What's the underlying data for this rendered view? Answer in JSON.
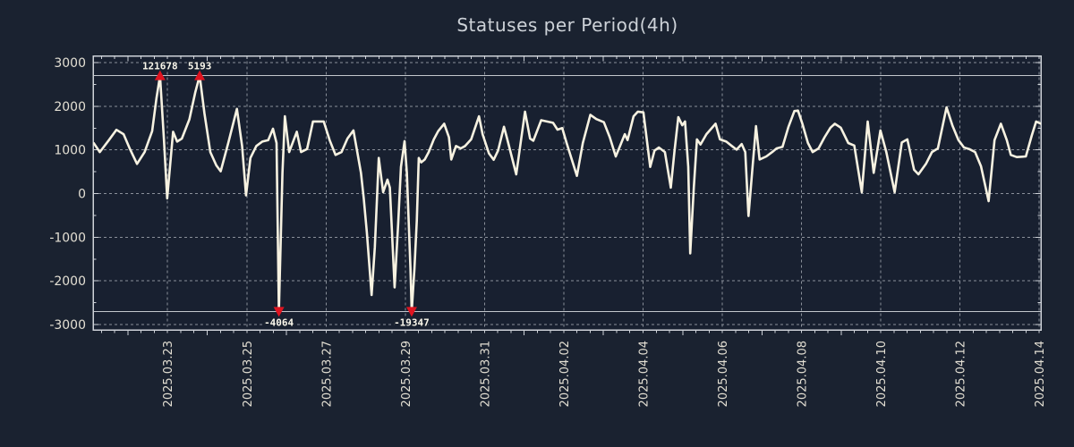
{
  "title": "Statuses per Period(4h)",
  "chart_data": {
    "type": "line",
    "title": "Statuses per Period(4h)",
    "period": "4h",
    "legend_position": "none",
    "grid": true,
    "x_axis": {
      "tick_labels": [
        "2025.03.23",
        "2025.03.25",
        "2025.03.27",
        "2025.03.29",
        "2025.03.31",
        "2025.04.02",
        "2025.04.04",
        "2025.04.06",
        "2025.04.08",
        "2025.04.10",
        "2025.04.12",
        "2025.04.14"
      ],
      "tick_interval_days": 2,
      "first_tick_day_offset": 1.88,
      "total_days": 23.92,
      "minor_tick_hours": 8
    },
    "y_axis": {
      "min": -3000,
      "max": 3000,
      "tick_step": 1000,
      "tick_labels": [
        "3000",
        "2000",
        "1000",
        "0",
        "-1000",
        "-2000",
        "-3000"
      ],
      "minor_tick_step": 500
    },
    "clip_value": 2700,
    "clip_lines": [
      2700,
      -2700
    ],
    "series": [
      {
        "name": "statuses",
        "points": [
          [
            0.02,
            1150
          ],
          [
            0.17,
            950
          ],
          [
            0.4,
            1225
          ],
          [
            0.59,
            1460
          ],
          [
            0.77,
            1360
          ],
          [
            0.93,
            1020
          ],
          [
            1.11,
            680
          ],
          [
            1.3,
            950
          ],
          [
            1.49,
            1430
          ],
          [
            1.6,
            2180
          ],
          [
            1.69,
            2700
          ],
          [
            1.79,
            1225
          ],
          [
            1.87,
            -110
          ],
          [
            1.96,
            815
          ],
          [
            2.02,
            1415
          ],
          [
            2.12,
            1190
          ],
          [
            2.24,
            1260
          ],
          [
            2.43,
            1700
          ],
          [
            2.58,
            2320
          ],
          [
            2.69,
            2700
          ],
          [
            2.81,
            1840
          ],
          [
            2.96,
            950
          ],
          [
            3.11,
            645
          ],
          [
            3.22,
            510
          ],
          [
            3.41,
            1155
          ],
          [
            3.63,
            1940
          ],
          [
            3.76,
            1090
          ],
          [
            3.86,
            -40
          ],
          [
            3.97,
            815
          ],
          [
            4.12,
            1090
          ],
          [
            4.27,
            1190
          ],
          [
            4.42,
            1225
          ],
          [
            4.54,
            1485
          ],
          [
            4.63,
            1155
          ],
          [
            4.69,
            -2700
          ],
          [
            4.78,
            475
          ],
          [
            4.84,
            1770
          ],
          [
            4.95,
            950
          ],
          [
            5.14,
            1415
          ],
          [
            5.25,
            950
          ],
          [
            5.4,
            1020
          ],
          [
            5.55,
            1650
          ],
          [
            5.82,
            1650
          ],
          [
            5.97,
            1225
          ],
          [
            6.12,
            885
          ],
          [
            6.27,
            950
          ],
          [
            6.42,
            1260
          ],
          [
            6.57,
            1445
          ],
          [
            6.66,
            985
          ],
          [
            6.76,
            475
          ],
          [
            6.83,
            -105
          ],
          [
            6.91,
            -890
          ],
          [
            7.03,
            -2325
          ],
          [
            7.11,
            -1230
          ],
          [
            7.21,
            815
          ],
          [
            7.32,
            30
          ],
          [
            7.43,
            320
          ],
          [
            7.49,
            135
          ],
          [
            7.61,
            -2150
          ],
          [
            7.7,
            -685
          ],
          [
            7.77,
            610
          ],
          [
            7.86,
            1200
          ],
          [
            7.92,
            475
          ],
          [
            8.01,
            -1710
          ],
          [
            8.04,
            -2700
          ],
          [
            8.11,
            -1710
          ],
          [
            8.17,
            -620
          ],
          [
            8.22,
            815
          ],
          [
            8.28,
            715
          ],
          [
            8.37,
            780
          ],
          [
            8.47,
            950
          ],
          [
            8.6,
            1240
          ],
          [
            8.71,
            1430
          ],
          [
            8.86,
            1600
          ],
          [
            8.98,
            1290
          ],
          [
            9.04,
            780
          ],
          [
            9.16,
            1090
          ],
          [
            9.28,
            1035
          ],
          [
            9.39,
            1090
          ],
          [
            9.54,
            1240
          ],
          [
            9.74,
            1770
          ],
          [
            9.83,
            1360
          ],
          [
            9.99,
            920
          ],
          [
            10.11,
            775
          ],
          [
            10.22,
            985
          ],
          [
            10.37,
            1530
          ],
          [
            10.44,
            1290
          ],
          [
            10.68,
            440
          ],
          [
            10.9,
            1875
          ],
          [
            11.03,
            1260
          ],
          [
            11.11,
            1210
          ],
          [
            11.31,
            1680
          ],
          [
            11.61,
            1620
          ],
          [
            11.72,
            1465
          ],
          [
            11.84,
            1500
          ],
          [
            11.95,
            1157
          ],
          [
            12.21,
            405
          ],
          [
            12.36,
            1157
          ],
          [
            12.55,
            1805
          ],
          [
            12.7,
            1705
          ],
          [
            12.89,
            1635
          ],
          [
            13.04,
            1290
          ],
          [
            13.19,
            850
          ],
          [
            13.3,
            1090
          ],
          [
            13.42,
            1360
          ],
          [
            13.49,
            1225
          ],
          [
            13.64,
            1770
          ],
          [
            13.75,
            1875
          ],
          [
            13.89,
            1860
          ],
          [
            14.06,
            610
          ],
          [
            14.17,
            985
          ],
          [
            14.28,
            1055
          ],
          [
            14.43,
            950
          ],
          [
            14.58,
            135
          ],
          [
            14.67,
            950
          ],
          [
            14.77,
            1750
          ],
          [
            14.87,
            1565
          ],
          [
            14.94,
            1650
          ],
          [
            15.02,
            610
          ],
          [
            15.07,
            -1370
          ],
          [
            15.16,
            135
          ],
          [
            15.24,
            1240
          ],
          [
            15.33,
            1125
          ],
          [
            15.48,
            1360
          ],
          [
            15.71,
            1600
          ],
          [
            15.82,
            1240
          ],
          [
            15.98,
            1190
          ],
          [
            16.12,
            1090
          ],
          [
            16.24,
            1005
          ],
          [
            16.37,
            1135
          ],
          [
            16.46,
            950
          ],
          [
            16.54,
            -515
          ],
          [
            16.63,
            475
          ],
          [
            16.73,
            1545
          ],
          [
            16.82,
            780
          ],
          [
            16.99,
            850
          ],
          [
            17.14,
            950
          ],
          [
            17.25,
            1035
          ],
          [
            17.4,
            1070
          ],
          [
            17.55,
            1530
          ],
          [
            17.7,
            1890
          ],
          [
            17.79,
            1900
          ],
          [
            17.9,
            1600
          ],
          [
            18.04,
            1160
          ],
          [
            18.16,
            950
          ],
          [
            18.31,
            1035
          ],
          [
            18.46,
            1290
          ],
          [
            18.61,
            1510
          ],
          [
            18.72,
            1600
          ],
          [
            18.87,
            1510
          ],
          [
            19.06,
            1157
          ],
          [
            19.21,
            1100
          ],
          [
            19.4,
            30
          ],
          [
            19.55,
            1650
          ],
          [
            19.7,
            475
          ],
          [
            19.87,
            1445
          ],
          [
            20.02,
            950
          ],
          [
            20.23,
            30
          ],
          [
            20.41,
            1170
          ],
          [
            20.55,
            1240
          ],
          [
            20.72,
            545
          ],
          [
            20.83,
            440
          ],
          [
            21.02,
            680
          ],
          [
            21.17,
            950
          ],
          [
            21.32,
            1035
          ],
          [
            21.54,
            1975
          ],
          [
            21.69,
            1550
          ],
          [
            21.84,
            1225
          ],
          [
            21.98,
            1055
          ],
          [
            22.11,
            1020
          ],
          [
            22.26,
            950
          ],
          [
            22.41,
            625
          ],
          [
            22.6,
            -175
          ],
          [
            22.75,
            1225
          ],
          [
            22.91,
            1600
          ],
          [
            23.06,
            1225
          ],
          [
            23.16,
            885
          ],
          [
            23.31,
            835
          ],
          [
            23.54,
            850
          ],
          [
            23.69,
            1330
          ],
          [
            23.8,
            1650
          ],
          [
            23.95,
            1600
          ]
        ]
      }
    ],
    "annotations": [
      {
        "t": 1.69,
        "value": 121678,
        "label": "121678",
        "direction": "up"
      },
      {
        "t": 2.69,
        "value": 5193,
        "label": "5193",
        "direction": "up"
      },
      {
        "t": 4.69,
        "value": -4064,
        "label": "-4064",
        "direction": "down"
      },
      {
        "t": 8.04,
        "value": -19347,
        "label": "-19347",
        "direction": "down"
      }
    ],
    "colors": {
      "background": "#1a2230",
      "plot_background": "#182030",
      "grid": "#8a909a",
      "border": "#ced2d8",
      "clip_line": "#c3c7cd",
      "line": "#f7f2e1",
      "marker": "#df1420",
      "tick_label": "#e3dfd3",
      "title": "#cdd2d8",
      "annotation_label": "#fbf8ec"
    }
  }
}
